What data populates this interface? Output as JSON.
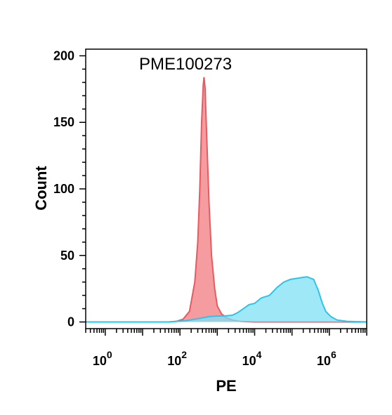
{
  "chart_data": {
    "type": "area",
    "title": "",
    "annotation": "PME100273",
    "xlabel": "PE",
    "ylabel": "Count",
    "x_scale": "log",
    "xlim": [
      0.3,
      10000000
    ],
    "ylim": [
      -5,
      205
    ],
    "y_ticks": [
      0,
      50,
      100,
      150,
      200
    ],
    "x_ticks": [
      {
        "value": 1,
        "base": "10",
        "exp": "0"
      },
      {
        "value": 100,
        "base": "10",
        "exp": "2"
      },
      {
        "value": 10000,
        "base": "10",
        "exp": "4"
      },
      {
        "value": 1000000,
        "base": "10",
        "exp": "6"
      }
    ],
    "grid": false,
    "legend": "none",
    "series": [
      {
        "color": "#f28b8f",
        "edge": "#e85a60",
        "points": [
          [
            0.3,
            0
          ],
          [
            10,
            0
          ],
          [
            50,
            0
          ],
          [
            80,
            0.5
          ],
          [
            120,
            2
          ],
          [
            180,
            8
          ],
          [
            250,
            30
          ],
          [
            300,
            60
          ],
          [
            340,
            100
          ],
          [
            380,
            150
          ],
          [
            420,
            178
          ],
          [
            440,
            184
          ],
          [
            470,
            176
          ],
          [
            520,
            140
          ],
          [
            600,
            90
          ],
          [
            700,
            50
          ],
          [
            850,
            25
          ],
          [
            1000,
            12
          ],
          [
            1300,
            6
          ],
          [
            1800,
            3
          ],
          [
            2500,
            1.5
          ],
          [
            4000,
            0.5
          ],
          [
            10000,
            0
          ],
          [
            10000000,
            0
          ]
        ]
      },
      {
        "color": "#7fe0f5",
        "edge": "#2cc4ec",
        "points": [
          [
            0.3,
            0
          ],
          [
            50,
            0
          ],
          [
            150,
            1
          ],
          [
            300,
            2.5
          ],
          [
            600,
            4
          ],
          [
            1000,
            4.5
          ],
          [
            1500,
            4.5
          ],
          [
            2500,
            5
          ],
          [
            3500,
            7
          ],
          [
            5000,
            10
          ],
          [
            7000,
            13
          ],
          [
            10000,
            14
          ],
          [
            15000,
            18
          ],
          [
            25000,
            20
          ],
          [
            40000,
            26
          ],
          [
            60000,
            30
          ],
          [
            90000,
            32
          ],
          [
            150000,
            33
          ],
          [
            250000,
            34
          ],
          [
            380000,
            32
          ],
          [
            500000,
            24
          ],
          [
            650000,
            14
          ],
          [
            800000,
            8
          ],
          [
            1100000,
            4
          ],
          [
            1600000,
            1.5
          ],
          [
            3000000,
            0.5
          ],
          [
            10000000,
            0
          ]
        ]
      }
    ]
  }
}
